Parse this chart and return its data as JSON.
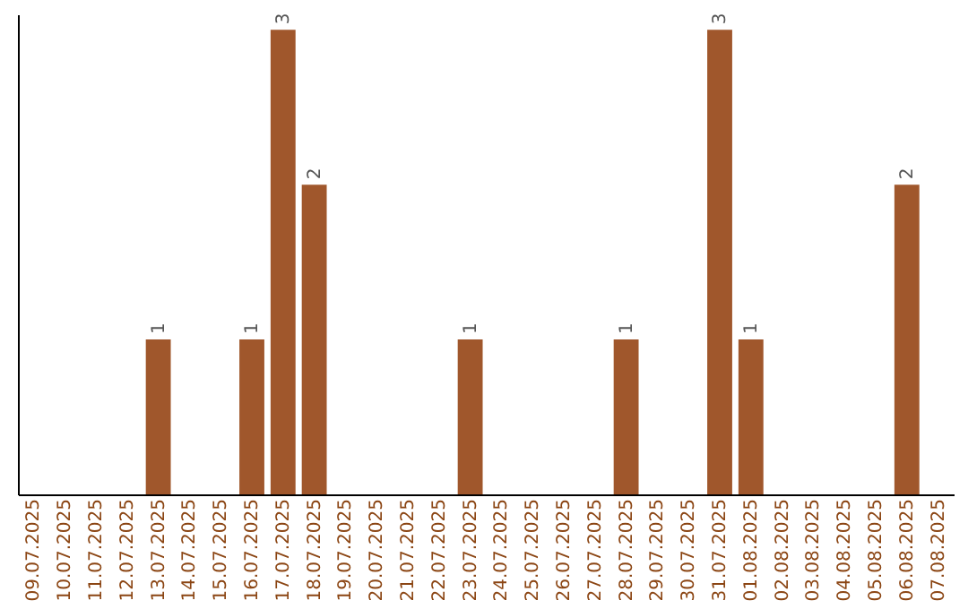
{
  "chart_data": {
    "type": "bar",
    "categories": [
      "09.07.2025",
      "10.07.2025",
      "11.07.2025",
      "12.07.2025",
      "13.07.2025",
      "14.07.2025",
      "15.07.2025",
      "16.07.2025",
      "17.07.2025",
      "18.07.2025",
      "19.07.2025",
      "20.07.2025",
      "21.07.2025",
      "22.07.2025",
      "23.07.2025",
      "24.07.2025",
      "25.07.2025",
      "26.07.2025",
      "27.07.2025",
      "28.07.2025",
      "29.07.2025",
      "30.07.2025",
      "31.07.2025",
      "01.08.2025",
      "02.08.2025",
      "03.08.2025",
      "04.08.2025",
      "05.08.2025",
      "06.08.2025",
      "07.08.2025"
    ],
    "values": [
      0,
      0,
      0,
      0,
      1,
      0,
      0,
      1,
      3,
      2,
      0,
      0,
      0,
      0,
      1,
      0,
      0,
      0,
      0,
      1,
      0,
      0,
      3,
      1,
      0,
      0,
      0,
      0,
      2,
      0
    ],
    "value_labels": [
      null,
      null,
      null,
      null,
      "1",
      null,
      null,
      "1",
      "3",
      "2",
      null,
      null,
      null,
      null,
      "1",
      null,
      null,
      null,
      null,
      "1",
      null,
      null,
      "3",
      "1",
      null,
      null,
      null,
      null,
      "2",
      null
    ],
    "color": "#a0572c",
    "ylim": [
      0,
      3.1
    ],
    "tick_labels": "x",
    "grid": false
  }
}
